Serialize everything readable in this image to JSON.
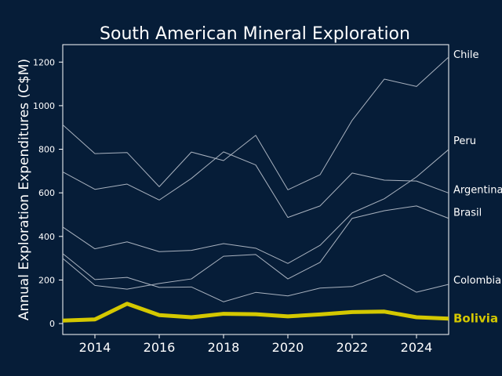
{
  "chart_data": {
    "type": "line",
    "title": "South American Mineral Exploration",
    "xlabel": "",
    "ylabel": "Annual Exploration Expenditures (C$M)",
    "xlim": [
      2013,
      2025
    ],
    "ylim": [
      -50,
      1280
    ],
    "xticks": [
      2014,
      2016,
      2018,
      2020,
      2022,
      2024
    ],
    "yticks": [
      0,
      200,
      400,
      600,
      800,
      1000,
      1200
    ],
    "grid": false,
    "legend": "direct labels at right end of lines",
    "colors": {
      "background": "#061d38",
      "text": "#ffffff",
      "series": "#a9b2bf",
      "highlight": "#d4c800"
    },
    "highlight_series": "Bolivia",
    "x": [
      2013,
      2014,
      2015,
      2016,
      2017,
      2018,
      2019,
      2020,
      2021,
      2022,
      2023,
      2024,
      2025
    ],
    "series": [
      {
        "name": "Chile",
        "values": [
          912,
          780,
          785,
          628,
          787,
          748,
          864,
          614,
          683,
          933,
          1122,
          1088,
          1223
        ]
      },
      {
        "name": "Peru",
        "values": [
          443,
          343,
          375,
          330,
          336,
          367,
          346,
          276,
          359,
          508,
          573,
          673,
          799
        ]
      },
      {
        "name": "Argentina",
        "values": [
          696,
          616,
          640,
          567,
          666,
          788,
          728,
          487,
          540,
          691,
          658,
          654,
          599
        ]
      },
      {
        "name": "Brasil",
        "values": [
          299,
          175,
          158,
          184,
          205,
          309,
          317,
          205,
          281,
          483,
          518,
          540,
          483
        ]
      },
      {
        "name": "Colombia",
        "values": [
          321,
          202,
          212,
          166,
          168,
          100,
          143,
          127,
          163,
          170,
          225,
          144,
          180
        ]
      },
      {
        "name": "Bolivia",
        "values": [
          14,
          19,
          91,
          39,
          29,
          45,
          43,
          33,
          42,
          53,
          55,
          29,
          23
        ]
      }
    ]
  }
}
